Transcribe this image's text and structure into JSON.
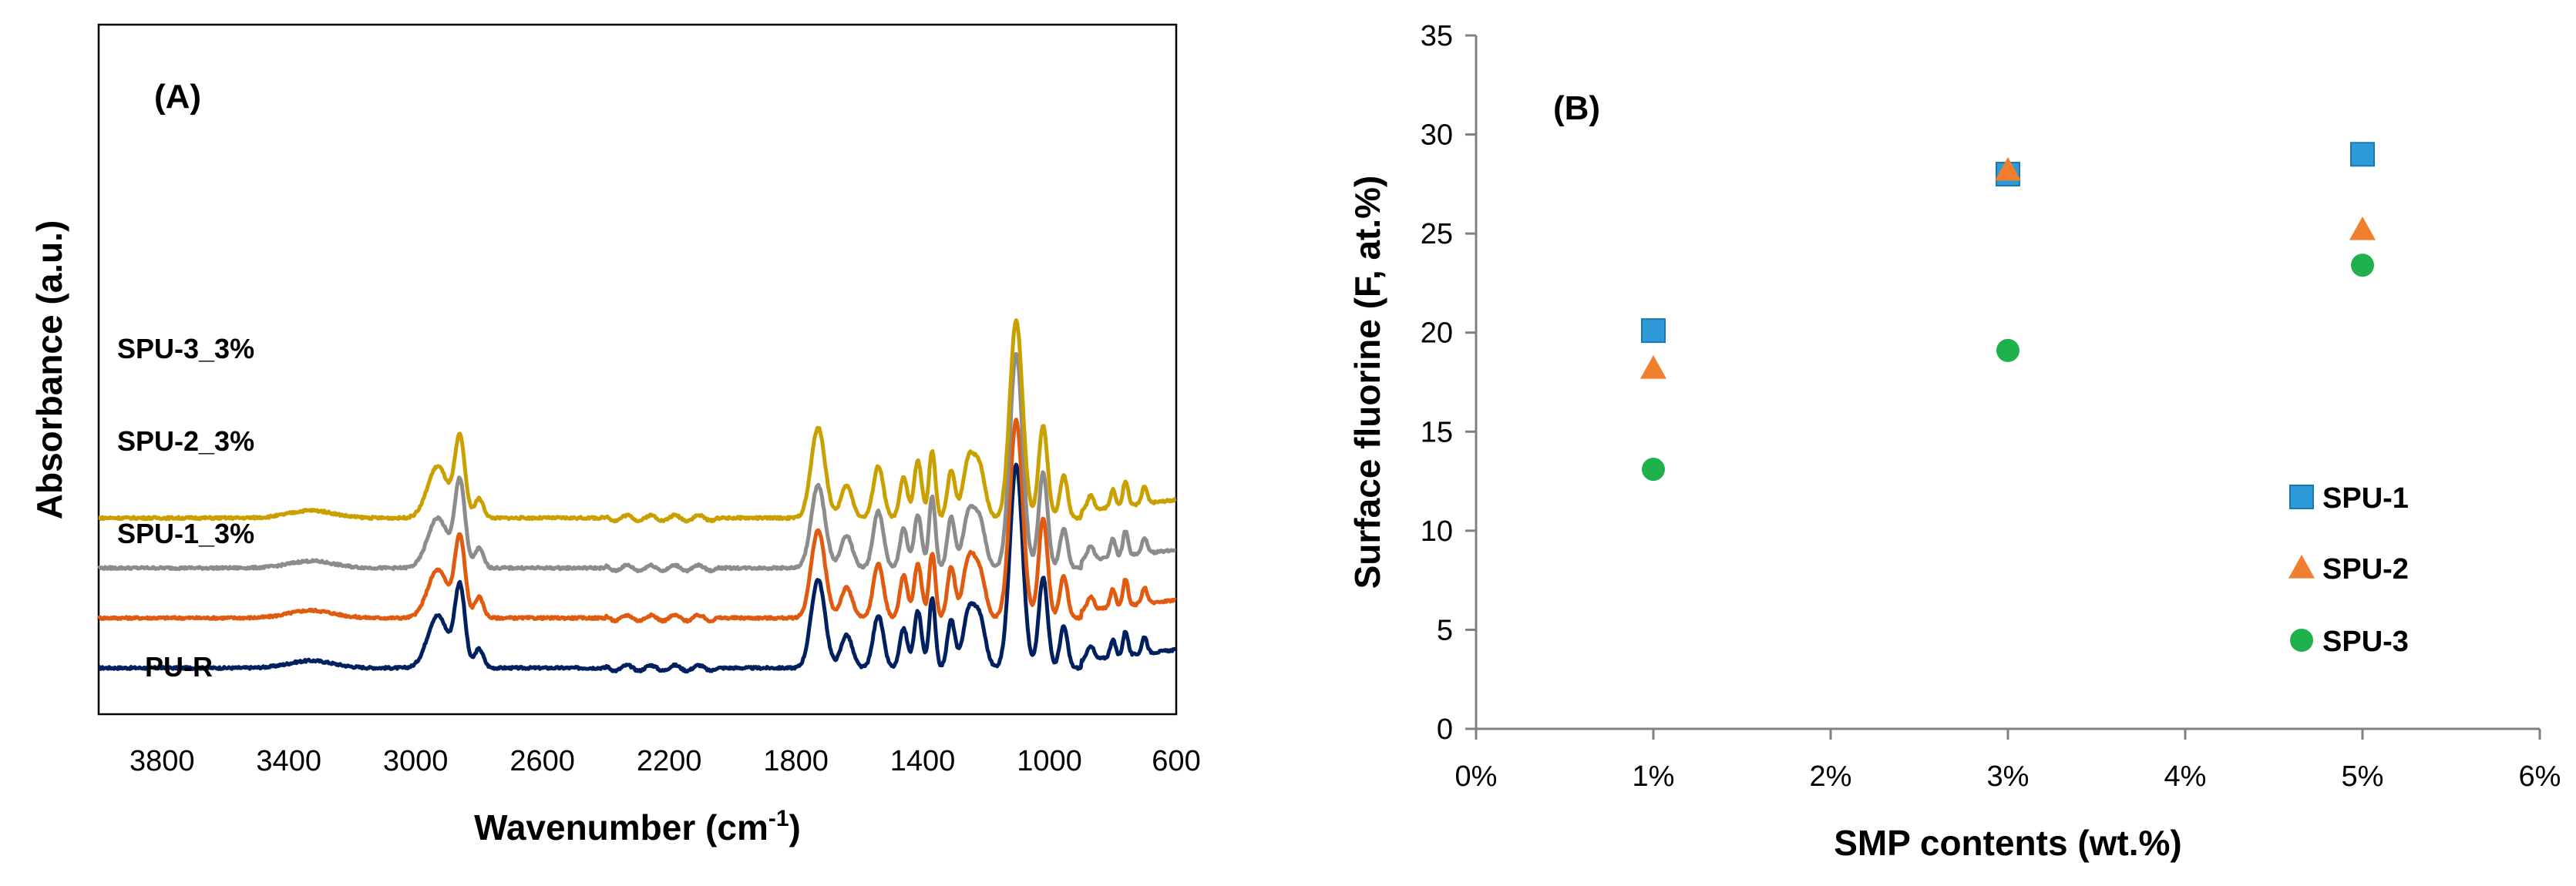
{
  "chart_data": [
    {
      "panel": "(A)",
      "type": "line",
      "title": "",
      "xlabel_main": "Wavenumber (cm",
      "xlabel_sup": "-1",
      "xlabel_end": ")",
      "ylabel": "Absorbance (a.u.)",
      "xlim": [
        4000,
        600
      ],
      "xaxis_reversed": true,
      "x_ticks": [
        "3800",
        "3400",
        "3000",
        "2600",
        "2200",
        "1800",
        "1400",
        "1000",
        "600"
      ],
      "x_tick_values": [
        3800,
        3400,
        3000,
        2600,
        2200,
        1800,
        1400,
        1000,
        600
      ],
      "y_ticks_shown": false,
      "offset_between_traces": 0.55,
      "peaks": [
        {
          "x": 3330,
          "h": 0.08,
          "w": 70
        },
        {
          "x": 2930,
          "h": 0.55,
          "w": 32
        },
        {
          "x": 2860,
          "h": 0.9,
          "w": 16
        },
        {
          "x": 2800,
          "h": 0.22,
          "w": 14
        },
        {
          "x": 1730,
          "h": 0.95,
          "w": 22
        },
        {
          "x": 1640,
          "h": 0.35,
          "w": 18
        },
        {
          "x": 1540,
          "h": 0.6,
          "w": 16
        },
        {
          "x": 1460,
          "h": 0.45,
          "w": 12
        },
        {
          "x": 1415,
          "h": 0.6,
          "w": 12
        },
        {
          "x": 1370,
          "h": 0.75,
          "w": 10
        },
        {
          "x": 1310,
          "h": 0.55,
          "w": 12
        },
        {
          "x": 1255,
          "h": 0.6,
          "w": 18
        },
        {
          "x": 1220,
          "h": 0.5,
          "w": 18
        },
        {
          "x": 1105,
          "h": 2.25,
          "w": 20
        },
        {
          "x": 1020,
          "h": 1.05,
          "w": 14
        },
        {
          "x": 955,
          "h": 0.45,
          "w": 12
        },
        {
          "x": 870,
          "h": 0.15,
          "w": 10
        },
        {
          "x": 800,
          "h": 0.2,
          "w": 8
        },
        {
          "x": 760,
          "h": 0.28,
          "w": 8
        },
        {
          "x": 700,
          "h": 0.18,
          "w": 8
        }
      ],
      "series": [
        {
          "name": "PU-R",
          "color": "#002060",
          "offset": 0
        },
        {
          "name": "SPU-1_3%",
          "color": "#e05a10",
          "offset": 0.55
        },
        {
          "name": "SPU-2_3%",
          "color": "#8c8c8c",
          "offset": 1.1
        },
        {
          "name": "SPU-3_3%",
          "color": "#c9a000",
          "offset": 1.65
        }
      ]
    },
    {
      "panel": "(B)",
      "type": "scatter",
      "title": "",
      "xlabel": "SMP contents (wt.%)",
      "ylabel": "Surface fluorine (F, at.%)",
      "xlim": [
        0,
        6
      ],
      "ylim": [
        0,
        35
      ],
      "x_ticks": [
        "0%",
        "1%",
        "2%",
        "3%",
        "4%",
        "5%",
        "6%"
      ],
      "x_tick_values": [
        0,
        1,
        2,
        3,
        4,
        5,
        6
      ],
      "y_ticks": [
        "0",
        "5",
        "10",
        "15",
        "20",
        "25",
        "30",
        "35"
      ],
      "y_tick_values": [
        0,
        5,
        10,
        15,
        20,
        25,
        30,
        35
      ],
      "legend_position": "right",
      "series": [
        {
          "name": "SPU-1",
          "marker": "square",
          "color": "#2e9bd8",
          "x": [
            1,
            3,
            5
          ],
          "values": [
            20.1,
            28.0,
            29.0
          ]
        },
        {
          "name": "SPU-2",
          "marker": "triangle",
          "color": "#f07e2e",
          "x": [
            1,
            3,
            5
          ],
          "values": [
            18.2,
            28.2,
            25.2
          ]
        },
        {
          "name": "SPU-3",
          "marker": "circle",
          "color": "#1fb14b",
          "x": [
            1,
            3,
            5
          ],
          "values": [
            13.1,
            19.1,
            23.4
          ]
        }
      ]
    }
  ]
}
